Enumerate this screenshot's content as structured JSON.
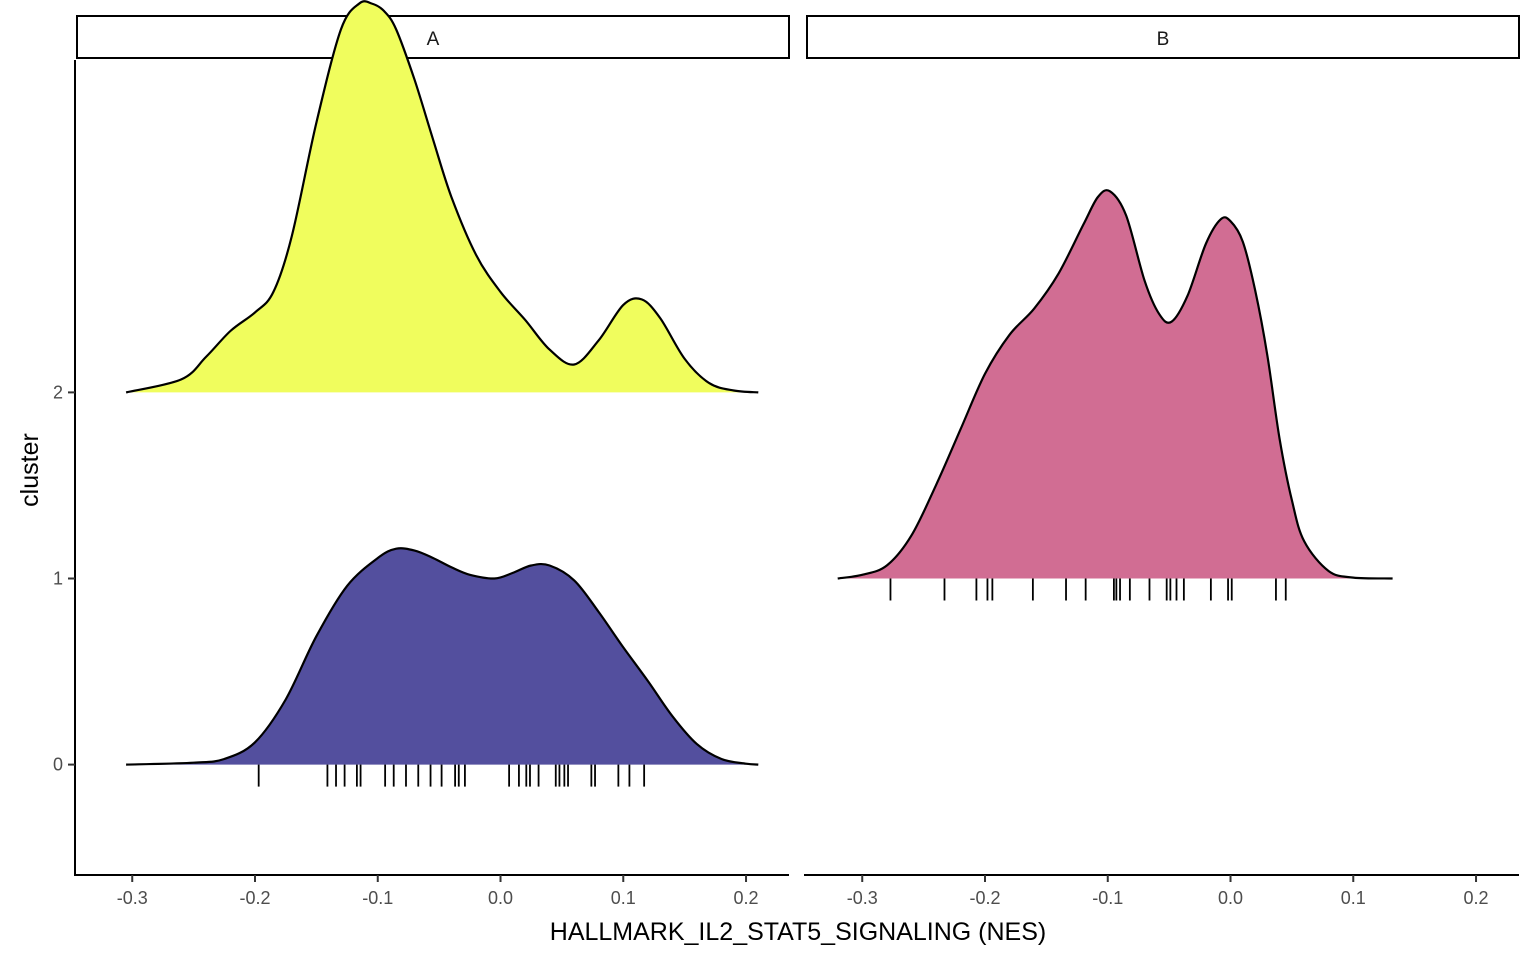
{
  "chart_data": {
    "type": "ridgeline",
    "xlabel": "HALLMARK_IL2_STAT5_SIGNALING (NES)",
    "ylabel": "cluster",
    "xlim": [
      -0.345,
      0.235
    ],
    "ylim": [
      -0.6,
      1.8
    ],
    "x_ticks": [
      -0.3,
      -0.2,
      -0.1,
      0.0,
      0.1,
      0.2
    ],
    "x_tick_labels": [
      "-0.3",
      "-0.2",
      "-0.1",
      "0.0",
      "0.1",
      "0.2"
    ],
    "y_ticks": [
      0,
      1,
      2
    ],
    "y_tick_labels": [
      "0",
      "1",
      "2"
    ],
    "ridge_height": 1.8,
    "legend": "none",
    "grid": false,
    "panels": [
      {
        "strip_label": "A",
        "ridges": [
          {
            "cluster": 0,
            "fill": "#534f9e",
            "density_x": [
              -0.305,
              -0.25,
              -0.225,
              -0.2,
              -0.175,
              -0.15,
              -0.125,
              -0.1,
              -0.085,
              -0.07,
              -0.055,
              -0.04,
              -0.025,
              -0.005,
              0.01,
              0.025,
              0.04,
              0.06,
              0.08,
              0.1,
              0.12,
              0.14,
              0.16,
              0.18,
              0.2,
              0.21
            ],
            "density_y": [
              0,
              0.01,
              0.03,
              0.12,
              0.35,
              0.69,
              0.96,
              1.11,
              1.16,
              1.15,
              1.11,
              1.06,
              1.02,
              1.0,
              1.03,
              1.07,
              1.07,
              0.99,
              0.82,
              0.63,
              0.45,
              0.26,
              0.11,
              0.03,
              0.005,
              0
            ],
            "ticks": [
              -0.197,
              -0.141,
              -0.134,
              -0.127,
              -0.117,
              -0.114,
              -0.094,
              -0.087,
              -0.077,
              -0.067,
              -0.057,
              -0.048,
              -0.037,
              -0.034,
              -0.029,
              0.007,
              0.015,
              0.021,
              0.024,
              0.031,
              0.045,
              0.048,
              0.052,
              0.055,
              0.074,
              0.077,
              0.096,
              0.105,
              0.117
            ]
          },
          {
            "cluster": 2,
            "fill": "#f0fd5d",
            "density_x": [
              -0.305,
              -0.26,
              -0.24,
              -0.22,
              -0.2,
              -0.185,
              -0.17,
              -0.15,
              -0.13,
              -0.115,
              -0.105,
              -0.095,
              -0.085,
              -0.07,
              -0.055,
              -0.04,
              -0.02,
              0.0,
              0.02,
              0.04,
              0.06,
              0.08,
              0.1,
              0.115,
              0.13,
              0.15,
              0.17,
              0.19,
              0.21
            ],
            "density_y": [
              0,
              0.07,
              0.19,
              0.33,
              0.43,
              0.54,
              0.84,
              1.45,
              1.95,
              2.09,
              2.09,
              2.05,
              1.95,
              1.68,
              1.36,
              1.05,
              0.74,
              0.54,
              0.39,
              0.23,
              0.15,
              0.28,
              0.47,
              0.5,
              0.4,
              0.18,
              0.05,
              0.01,
              0
            ]
          }
        ]
      },
      {
        "strip_label": "B",
        "ridges": [
          {
            "cluster": 1,
            "fill": "#d16d93",
            "density_x": [
              -0.32,
              -0.3,
              -0.28,
              -0.26,
              -0.24,
              -0.22,
              -0.2,
              -0.18,
              -0.16,
              -0.14,
              -0.12,
              -0.108,
              -0.098,
              -0.085,
              -0.07,
              -0.058,
              -0.048,
              -0.035,
              -0.02,
              -0.008,
              0.0,
              0.01,
              0.02,
              0.03,
              0.04,
              0.05,
              0.06,
              0.08,
              0.1,
              0.132
            ],
            "density_y": [
              0,
              0.02,
              0.07,
              0.23,
              0.5,
              0.8,
              1.1,
              1.31,
              1.45,
              1.64,
              1.9,
              2.05,
              2.08,
              1.95,
              1.6,
              1.42,
              1.38,
              1.52,
              1.8,
              1.93,
              1.92,
              1.81,
              1.55,
              1.2,
              0.75,
              0.42,
              0.2,
              0.04,
              0.005,
              0
            ],
            "ticks": [
              -0.277,
              -0.233,
              -0.207,
              -0.198,
              -0.194,
              -0.161,
              -0.134,
              -0.118,
              -0.095,
              -0.093,
              -0.09,
              -0.082,
              -0.066,
              -0.052,
              -0.049,
              -0.044,
              -0.038,
              -0.016,
              -0.002,
              0.001,
              0.037,
              0.045
            ]
          }
        ]
      }
    ]
  }
}
